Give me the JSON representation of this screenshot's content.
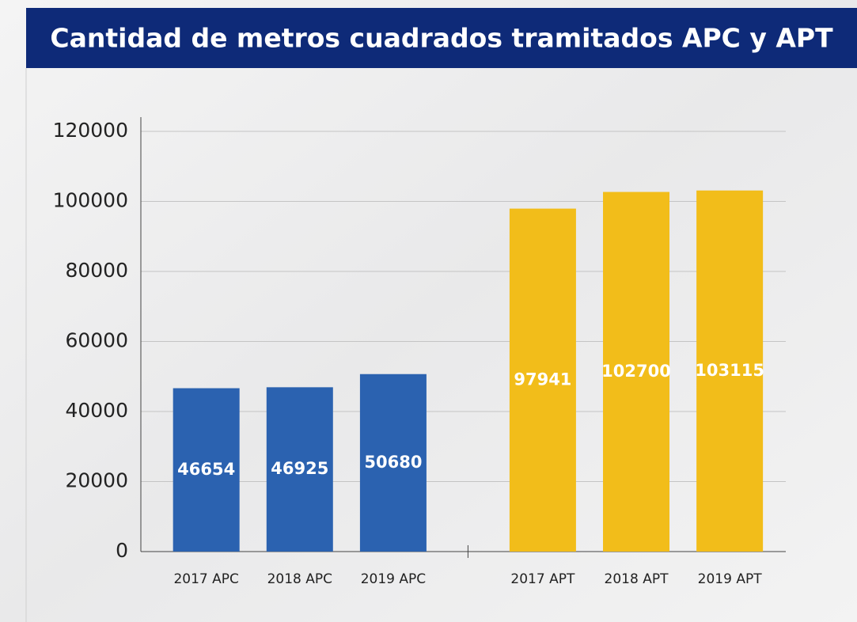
{
  "chart_data": {
    "type": "bar",
    "title": "Cantidad de metros cuadrados tramitados APC y APT",
    "categories": [
      "2017 APC",
      "2018 APC",
      "2019 APC",
      "2017 APT",
      "2018 APT",
      "2019 APT"
    ],
    "values": [
      46654,
      46925,
      50680,
      97941,
      102700,
      103115
    ],
    "colors": [
      "#2b62b0",
      "#2b62b0",
      "#2b62b0",
      "#f2bd1a",
      "#f2bd1a",
      "#f2bd1a"
    ],
    "ylim": [
      0,
      120000
    ],
    "yticks": [
      0,
      20000,
      40000,
      60000,
      80000,
      100000,
      120000
    ],
    "grid": true
  }
}
